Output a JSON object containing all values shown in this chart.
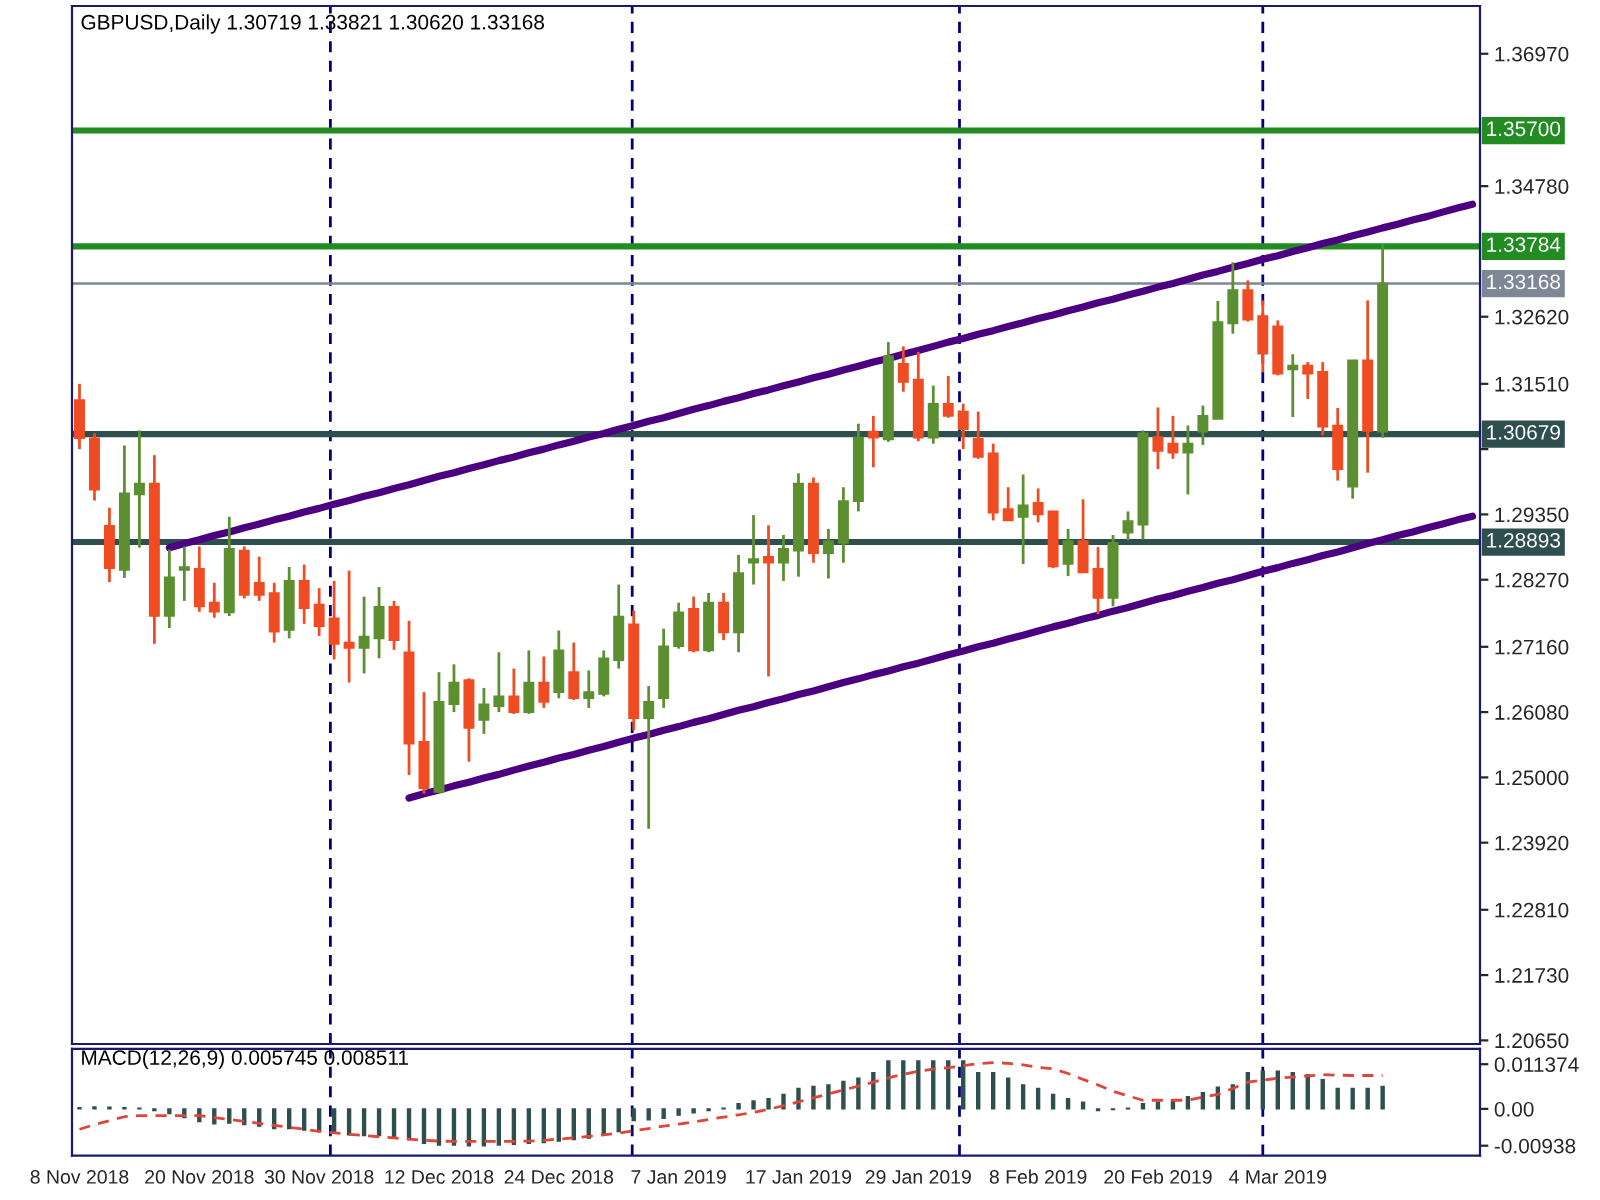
{
  "chart_data": [
    {
      "type": "candlestick",
      "title": "GBPUSD,Daily 1.30719 1.33821 1.30620 1.33168",
      "categories": [
        null,
        null,
        null,
        null,
        null,
        null,
        null,
        null,
        null,
        null,
        null,
        null,
        null,
        null,
        null,
        null,
        null,
        null,
        null,
        null,
        null,
        null,
        null,
        null,
        null,
        null,
        null,
        null,
        null,
        null,
        null,
        null,
        null,
        null,
        null,
        null,
        null,
        null,
        null,
        null,
        null,
        null,
        null,
        null,
        null,
        null,
        null,
        null,
        null,
        null,
        null,
        null,
        null,
        null,
        null,
        null,
        null,
        null,
        null,
        null,
        null,
        null,
        null,
        null,
        null,
        null,
        null,
        null,
        null,
        null,
        null,
        null,
        null,
        null,
        null,
        null,
        null,
        null,
        null,
        null,
        null,
        null,
        null,
        null,
        null,
        null,
        null,
        null,
        null,
        null,
        null,
        null,
        null,
        null
      ],
      "ohlc": [
        [
          1.3124,
          1.3151,
          1.3043,
          1.3061
        ],
        [
          1.3061,
          1.3069,
          1.2958,
          1.2976
        ],
        [
          1.2916,
          1.2946,
          1.2823,
          1.2846
        ],
        [
          1.2843,
          1.3049,
          1.283,
          1.297
        ],
        [
          1.2968,
          1.3074,
          1.288,
          1.2986
        ],
        [
          1.2986,
          1.3033,
          1.2721,
          1.2767
        ],
        [
          1.2767,
          1.2877,
          1.2747,
          1.2831
        ],
        [
          1.2843,
          1.2882,
          1.2792,
          1.2848
        ],
        [
          1.2845,
          1.2882,
          1.2774,
          1.2783
        ],
        [
          1.2789,
          1.2822,
          1.2764,
          1.2774
        ],
        [
          1.2773,
          1.2931,
          1.2767,
          1.2878
        ],
        [
          1.2875,
          1.2882,
          1.2796,
          1.2802
        ],
        [
          1.2822,
          1.2865,
          1.2792,
          1.2802
        ],
        [
          1.2805,
          1.2822,
          1.2723,
          1.2741
        ],
        [
          1.2744,
          1.2848,
          1.273,
          1.2825
        ],
        [
          1.2825,
          1.2852,
          1.2754,
          1.278
        ],
        [
          1.2786,
          1.2813,
          1.2734,
          1.275
        ],
        [
          1.2763,
          1.2825,
          1.2695,
          1.2721
        ],
        [
          1.2723,
          1.2842,
          1.2657,
          1.2714
        ],
        [
          1.2714,
          1.2799,
          1.2672,
          1.2733
        ],
        [
          1.273,
          1.2815,
          1.2697,
          1.2782
        ],
        [
          1.2782,
          1.2792,
          1.2711,
          1.2727
        ],
        [
          1.2707,
          1.2759,
          1.2504,
          1.2556
        ],
        [
          1.2559,
          1.2641,
          1.2473,
          1.2482
        ],
        [
          1.2476,
          1.2674,
          1.2474,
          1.2625
        ],
        [
          1.2621,
          1.2687,
          1.2608,
          1.2657
        ],
        [
          1.2661,
          1.2664,
          1.2526,
          1.2582
        ],
        [
          1.2595,
          1.2648,
          1.2572,
          1.2621
        ],
        [
          1.2618,
          1.2707,
          1.2608,
          1.2634
        ],
        [
          1.2634,
          1.268,
          1.2605,
          1.2608
        ],
        [
          1.2608,
          1.271,
          1.2605,
          1.2657
        ],
        [
          1.2657,
          1.27,
          1.2615,
          1.2625
        ],
        [
          1.2641,
          1.2743,
          1.2631,
          1.271
        ],
        [
          1.2674,
          1.2723,
          1.2628,
          1.2631
        ],
        [
          1.2631,
          1.2677,
          1.2615,
          1.2641
        ],
        [
          1.2638,
          1.271,
          1.2634,
          1.2697
        ],
        [
          1.2694,
          1.2819,
          1.268,
          1.2766
        ],
        [
          1.2753,
          1.2776,
          1.2578,
          1.2598
        ],
        [
          1.2598,
          1.2651,
          1.2415,
          1.2625
        ],
        [
          1.2631,
          1.2746,
          1.2615,
          1.2717
        ],
        [
          1.2717,
          1.2789,
          1.2713,
          1.2773
        ],
        [
          1.2779,
          1.2799,
          1.2707,
          1.271
        ],
        [
          1.271,
          1.2805,
          1.2707,
          1.2789
        ],
        [
          1.2789,
          1.2805,
          1.2727,
          1.274
        ],
        [
          1.274,
          1.2868,
          1.2707,
          1.2838
        ],
        [
          1.2855,
          1.2934,
          1.2819,
          1.2861
        ],
        [
          1.2865,
          1.2917,
          1.2667,
          1.2855
        ],
        [
          1.2855,
          1.2901,
          1.2825,
          1.2878
        ],
        [
          1.2875,
          1.3003,
          1.2832,
          1.2986
        ],
        [
          1.2986,
          1.2996,
          1.2855,
          1.2871
        ],
        [
          1.2871,
          1.2911,
          1.2829,
          1.2891
        ],
        [
          1.2888,
          1.298,
          1.2855,
          1.2957
        ],
        [
          1.2957,
          1.3085,
          1.294,
          1.3062
        ],
        [
          1.3072,
          1.3098,
          1.3013,
          1.3062
        ],
        [
          1.3059,
          1.322,
          1.3055,
          1.3197
        ],
        [
          1.3184,
          1.3213,
          1.3138,
          1.3154
        ],
        [
          1.3158,
          1.3204,
          1.3056,
          1.3062
        ],
        [
          1.3062,
          1.3148,
          1.3052,
          1.3118
        ],
        [
          1.3118,
          1.3164,
          1.3095,
          1.3098
        ],
        [
          1.3105,
          1.3118,
          1.3043,
          1.3076
        ],
        [
          1.306,
          1.3105,
          1.3027,
          1.303
        ],
        [
          1.3036,
          1.3052,
          1.2925,
          1.2938
        ],
        [
          1.2944,
          1.298,
          1.2925,
          1.2925
        ],
        [
          1.2931,
          1.3001,
          1.2853,
          1.295
        ],
        [
          1.2954,
          1.2978,
          1.2922,
          1.2935
        ],
        [
          1.294,
          1.294,
          1.2846,
          1.2849
        ],
        [
          1.2853,
          1.2911,
          1.2833,
          1.2891
        ],
        [
          1.2891,
          1.296,
          1.2839,
          1.2839
        ],
        [
          1.2845,
          1.2881,
          1.277,
          1.2797
        ],
        [
          1.2797,
          1.2901,
          1.2783,
          1.2888
        ],
        [
          1.2905,
          1.294,
          1.2892,
          1.2924
        ],
        [
          1.2918,
          1.3074,
          1.2893,
          1.3069
        ],
        [
          1.3063,
          1.3112,
          1.301,
          1.304
        ],
        [
          1.3052,
          1.3098,
          1.3027,
          1.3037
        ],
        [
          1.3037,
          1.3082,
          1.2968,
          1.3052
        ],
        [
          1.3072,
          1.3115,
          1.305,
          1.3098
        ],
        [
          1.3093,
          1.3288,
          1.3093,
          1.3253
        ],
        [
          1.3251,
          1.3352,
          1.3234,
          1.3306
        ],
        [
          1.3306,
          1.3322,
          1.3254,
          1.3257
        ],
        [
          1.3263,
          1.3289,
          1.317,
          1.3201
        ],
        [
          1.3246,
          1.3256,
          1.3165,
          1.3168
        ],
        [
          1.3175,
          1.32,
          1.3096,
          1.3181
        ],
        [
          1.3181,
          1.3187,
          1.3126,
          1.3168
        ],
        [
          1.3171,
          1.3187,
          1.3066,
          1.308
        ],
        [
          1.3082,
          1.3111,
          1.2991,
          1.301
        ],
        [
          1.2981,
          1.319,
          1.2961,
          1.319
        ],
        [
          1.319,
          1.3289,
          1.3004,
          1.3073
        ],
        [
          1.30719,
          1.33821,
          1.3062,
          1.33168
        ],
        null,
        null,
        null,
        null,
        null,
        null
      ],
      "colors": [
        "#f04c24",
        "#f04c24",
        "#f04c24",
        "#5b8f2f",
        "#5b8f2f",
        "#f04c24",
        "#5b8f2f",
        "#5b8f2f",
        "#f04c24",
        "#f04c24",
        "#5b8f2f",
        "#f04c24",
        "#f04c24",
        "#f04c24",
        "#5b8f2f",
        "#f04c24",
        "#f04c24",
        "#f04c24",
        "#f04c24",
        "#5b8f2f",
        "#5b8f2f",
        "#f04c24",
        "#f04c24",
        "#f04c24",
        "#5b8f2f",
        "#5b8f2f",
        "#f04c24",
        "#5b8f2f",
        "#5b8f2f",
        "#f04c24",
        "#5b8f2f",
        "#f04c24",
        "#5b8f2f",
        "#f04c24",
        "#5b8f2f",
        "#5b8f2f",
        "#5b8f2f",
        "#f04c24",
        "#5b8f2f",
        "#5b8f2f",
        "#5b8f2f",
        "#f04c24",
        "#5b8f2f",
        "#f04c24",
        "#5b8f2f",
        "#5b8f2f",
        "#f04c24",
        "#5b8f2f",
        "#5b8f2f",
        "#f04c24",
        "#5b8f2f",
        "#5b8f2f",
        "#5b8f2f",
        "#f04c24",
        "#5b8f2f",
        "#f04c24",
        "#f04c24",
        "#5b8f2f",
        "#f04c24",
        "#f04c24",
        "#f04c24",
        "#f04c24",
        "#f04c24",
        "#5b8f2f",
        "#f04c24",
        "#f04c24",
        "#5b8f2f",
        "#f04c24",
        "#f04c24",
        "#5b8f2f",
        "#5b8f2f",
        "#5b8f2f",
        "#f04c24",
        "#f04c24",
        "#5b8f2f",
        "#5b8f2f",
        "#5b8f2f",
        "#5b8f2f",
        "#f04c24",
        "#f04c24",
        "#f04c24",
        "#5b8f2f",
        "#f04c24",
        "#f04c24",
        "#f04c24",
        "#5b8f2f",
        "#f04c24",
        "#5b8f2f",
        null,
        null,
        null,
        null,
        null,
        null
      ],
      "series": [
        {
          "type": "line",
          "color": "#4b0082",
          "values": [
            null,
            null,
            null,
            null,
            null,
            null,
            1.288,
            1.2887,
            1.2893,
            1.29,
            1.2906,
            1.2913,
            1.2919,
            1.2926,
            1.2932,
            1.2939,
            1.2945,
            1.2952,
            1.2958,
            1.2965,
            1.2971,
            1.2978,
            1.2984,
            1.2991,
            1.2998,
            1.3004,
            1.3011,
            1.3017,
            1.3024,
            1.303,
            1.3037,
            1.3043,
            1.305,
            1.3056,
            1.3063,
            1.3069,
            1.3076,
            1.3082,
            1.3089,
            1.3095,
            1.3102,
            1.3109,
            1.3115,
            1.3122,
            1.3128,
            1.3135,
            1.3141,
            1.3148,
            1.3154,
            1.3161,
            1.3167,
            1.3174,
            1.318,
            1.3187,
            1.3193,
            1.32,
            1.3206,
            1.3213,
            1.322,
            1.3226,
            1.3233,
            1.3239,
            1.3246,
            1.3252,
            1.3259,
            1.3265,
            1.3272,
            1.3278,
            1.3285,
            1.3291,
            1.3298,
            1.3304,
            1.3311,
            1.3317,
            1.3324,
            1.3331,
            1.3337,
            1.3344,
            1.335,
            1.3357,
            1.3363,
            1.337,
            1.3376,
            1.3383,
            1.3389,
            1.3396,
            1.3402,
            1.3409,
            1.3415,
            1.3422,
            1.3428,
            1.3435,
            1.3442,
            1.3448
          ]
        },
        {
          "type": "line",
          "color": "#4b0082",
          "values": [
            null,
            null,
            null,
            null,
            null,
            null,
            null,
            null,
            null,
            null,
            null,
            null,
            null,
            null,
            null,
            null,
            null,
            null,
            null,
            null,
            null,
            null,
            1.2466,
            1.2473,
            1.2479,
            1.2486,
            1.2492,
            1.2499,
            1.2505,
            1.2512,
            1.2519,
            1.2525,
            1.2532,
            1.2538,
            1.2545,
            1.2551,
            1.2558,
            1.2565,
            1.2571,
            1.2578,
            1.2584,
            1.2591,
            1.2597,
            1.2604,
            1.2611,
            1.2617,
            1.2624,
            1.263,
            1.2637,
            1.2643,
            1.265,
            1.2657,
            1.2663,
            1.267,
            1.2676,
            1.2683,
            1.2689,
            1.2696,
            1.2703,
            1.2709,
            1.2716,
            1.2722,
            1.2729,
            1.2735,
            1.2742,
            1.2749,
            1.2755,
            1.2762,
            1.2768,
            1.2775,
            1.2781,
            1.2788,
            1.2795,
            1.2801,
            1.2808,
            1.2814,
            1.2821,
            1.2827,
            1.2834,
            1.2841,
            1.2847,
            1.2854,
            1.286,
            1.2867,
            1.2873,
            1.288,
            1.2887,
            1.2893,
            1.29,
            1.2906,
            1.2913,
            1.2919,
            1.2926,
            1.2932
          ]
        }
      ],
      "ylim": [
        1.2059,
        1.3776
      ],
      "yticks": [
        {
          "value": 1.2065,
          "label": "1.20650"
        },
        {
          "value": 1.2173,
          "label": "1.21730"
        },
        {
          "value": 1.2281,
          "label": "1.22810"
        },
        {
          "value": 1.2392,
          "label": "1.23920"
        },
        {
          "value": 1.25,
          "label": "1.25000"
        },
        {
          "value": 1.2608,
          "label": "1.26080"
        },
        {
          "value": 1.2716,
          "label": "1.27160"
        },
        {
          "value": 1.2827,
          "label": "1.28270"
        },
        {
          "value": 1.2935,
          "label": "1.29350"
        },
        {
          "value": 1.3043,
          "label": null
        },
        {
          "value": 1.3151,
          "label": "1.31510"
        },
        {
          "value": 1.3262,
          "label": "1.32620"
        },
        {
          "value": 1.3478,
          "label": "1.34780"
        },
        {
          "value": 1.3697,
          "label": "1.36970"
        }
      ],
      "tick_labels": "y",
      "ref_lines": [
        {
          "axis": "y",
          "value": 1.357,
          "label": "1.35700",
          "color": "#228b22"
        },
        {
          "axis": "y",
          "value": 1.33784,
          "label": "1.33784",
          "color": "#228b22"
        },
        {
          "axis": "y",
          "value": 1.33168,
          "label": "1.33168",
          "color": "#7d8796"
        },
        {
          "axis": "y",
          "value": 1.30679,
          "label": "1.30679",
          "color": "#2f4f4f"
        },
        {
          "axis": "y",
          "value": 1.28893,
          "label": "1.28893",
          "color": "#2f4f4f"
        }
      ]
    },
    {
      "type": "bar",
      "title": "MACD(12,26,9) 0.005745 0.008511",
      "categories": [
        "8 Nov 2018",
        null,
        null,
        null,
        null,
        null,
        null,
        null,
        "20 Nov 2018",
        null,
        null,
        null,
        null,
        null,
        null,
        null,
        "30 Nov 2018",
        null,
        null,
        null,
        null,
        null,
        null,
        null,
        "12 Dec 2018",
        null,
        null,
        null,
        null,
        null,
        null,
        null,
        "24 Dec 2018",
        null,
        null,
        null,
        null,
        null,
        null,
        null,
        "7 Jan 2019",
        null,
        null,
        null,
        null,
        null,
        null,
        null,
        "17 Jan 2019",
        null,
        null,
        null,
        null,
        null,
        null,
        null,
        "29 Jan 2019",
        null,
        null,
        null,
        null,
        null,
        null,
        null,
        "8 Feb 2019",
        null,
        null,
        null,
        null,
        null,
        null,
        null,
        "20 Feb 2019",
        null,
        null,
        null,
        null,
        null,
        null,
        null,
        "4 Mar 2019",
        null,
        null,
        null,
        null,
        null,
        null,
        null,
        null,
        null,
        null,
        null,
        null,
        null
      ],
      "series": [
        {
          "type": "bar",
          "color": "#2f4f4f",
          "values": [
            0.0003,
            0.0005,
            0.0004,
            0.0003,
            0.0002,
            -0.0004,
            -0.0012,
            -0.0022,
            -0.0032,
            -0.0038,
            -0.0036,
            -0.004,
            -0.0044,
            -0.005,
            -0.005,
            -0.0054,
            -0.0058,
            -0.0062,
            -0.0066,
            -0.0068,
            -0.0068,
            -0.007,
            -0.0078,
            -0.0088,
            -0.0092,
            -0.0092,
            -0.0094,
            -0.0094,
            -0.0092,
            -0.009,
            -0.0088,
            -0.0086,
            -0.0082,
            -0.0078,
            -0.0074,
            -0.0066,
            -0.0058,
            -0.003,
            -0.0028,
            -0.0024,
            -0.0016,
            -0.001,
            -0.0004,
            0.0002,
            0.0013,
            0.002,
            0.0026,
            0.0037,
            0.0052,
            0.0057,
            0.0061,
            0.007,
            0.0078,
            0.0092,
            0.0122,
            0.0122,
            0.0122,
            0.0122,
            0.0122,
            0.0122,
            0.0092,
            0.0092,
            0.0078,
            0.0061,
            0.0052,
            0.0037,
            0.0026,
            0.0017,
            -0.0004,
            -0.0002,
            0.0002,
            0.0013,
            0.0017,
            0.0022,
            0.0031,
            0.0041,
            0.0055,
            0.0061,
            0.0092,
            0.0096,
            0.0096,
            0.0092,
            0.0087,
            0.0074,
            0.0052,
            0.0052,
            0.0052,
            0.0057,
            null,
            null,
            null,
            null,
            null,
            null
          ]
        },
        {
          "type": "line",
          "color": "#e0453a",
          "line_style": "dashed",
          "values": [
            -0.0052,
            -0.004,
            -0.003,
            -0.002,
            -0.0017,
            -0.0017,
            -0.0017,
            -0.0017,
            -0.0017,
            -0.0022,
            -0.0027,
            -0.0032,
            -0.0037,
            -0.0042,
            -0.0047,
            -0.0052,
            -0.0057,
            -0.0061,
            -0.0065,
            -0.0068,
            -0.0071,
            -0.0074,
            -0.0077,
            -0.008,
            -0.0082,
            -0.0083,
            -0.0083,
            -0.0083,
            -0.0083,
            -0.0083,
            -0.0082,
            -0.008,
            -0.0077,
            -0.0074,
            -0.007,
            -0.0066,
            -0.0062,
            -0.0056,
            -0.005,
            -0.0044,
            -0.0039,
            -0.0033,
            -0.0027,
            -0.0021,
            -0.0015,
            -0.0009,
            -0.0001,
            0.0008,
            0.0018,
            0.0028,
            0.0038,
            0.0048,
            0.0058,
            0.0068,
            0.0079,
            0.0088,
            0.0096,
            0.0101,
            0.0105,
            0.011,
            0.0115,
            0.0118,
            0.0116,
            0.0112,
            0.0106,
            0.0102,
            0.009,
            0.0075,
            0.0061,
            0.0045,
            0.0033,
            0.0022,
            0.0022,
            0.0022,
            0.0022,
            0.003,
            0.0037,
            0.0052,
            0.0068,
            0.0073,
            0.0078,
            0.0081,
            0.0084,
            0.0087,
            0.0086,
            0.0085,
            0.0085,
            0.0085,
            null,
            null,
            null,
            null,
            null,
            null
          ]
        }
      ],
      "ylim": [
        -0.0119,
        0.0153
      ],
      "yticks": [
        -0.00938,
        {
          "value": 0,
          "label": "0.00"
        },
        0.011374
      ]
    }
  ]
}
